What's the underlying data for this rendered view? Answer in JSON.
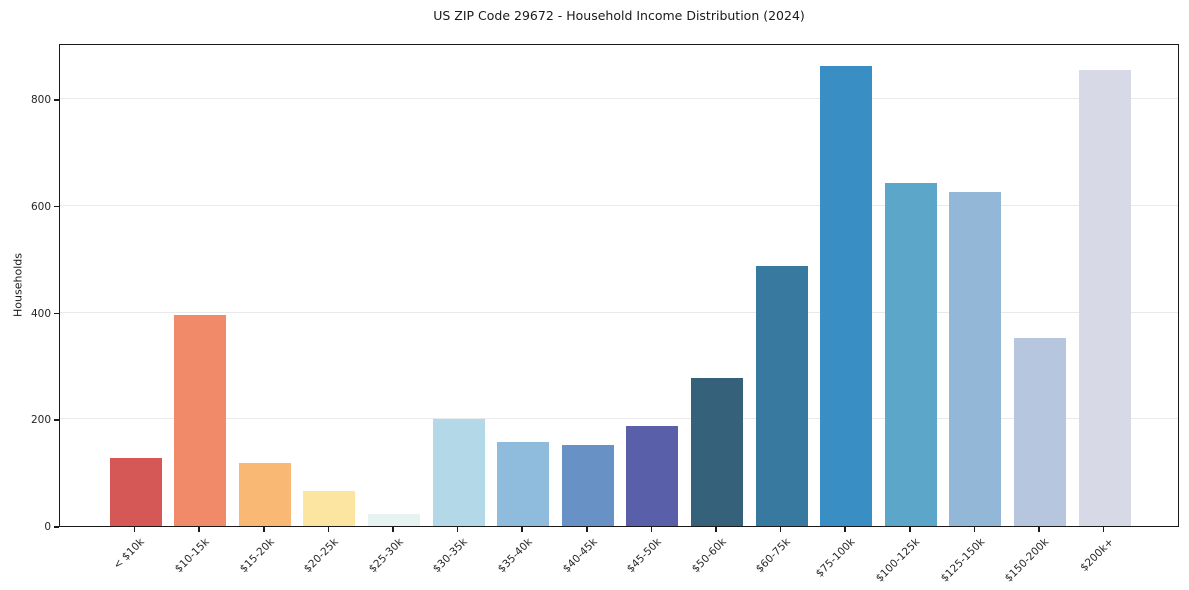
{
  "chart_data": {
    "type": "bar",
    "title": "US ZIP Code 29672 - Household Income Distribution (2024)",
    "xlabel": "",
    "ylabel": "Households",
    "categories": [
      "< $10k",
      "$10-15k",
      "$15-20k",
      "$20-25k",
      "$25-30k",
      "$30-35k",
      "$35-40k",
      "$40-45k",
      "$45-50k",
      "$50-60k",
      "$60-75k",
      "$75-100k",
      "$100-125k",
      "$125-150k",
      "$150-200k",
      "$200k+"
    ],
    "values": [
      128,
      395,
      119,
      66,
      22,
      200,
      157,
      152,
      188,
      278,
      488,
      862,
      643,
      626,
      353,
      855
    ],
    "bar_colors": [
      "#d65856",
      "#f08a68",
      "#f9b873",
      "#fce4a1",
      "#e7f3f1",
      "#b3d9e8",
      "#8fbcdc",
      "#6892c5",
      "#5a5fa9",
      "#36617b",
      "#38799f",
      "#398fc4",
      "#5ba6c9",
      "#92b7d7",
      "#b6c6de",
      "#d7d9e6"
    ],
    "ylim": [
      0,
      905
    ],
    "yticks": [
      0,
      200,
      400,
      600,
      800
    ],
    "grid": "horizontal-light",
    "legend": "none",
    "axis_color": "#1a1a1a",
    "gridline_color": "#e9e9e9"
  }
}
